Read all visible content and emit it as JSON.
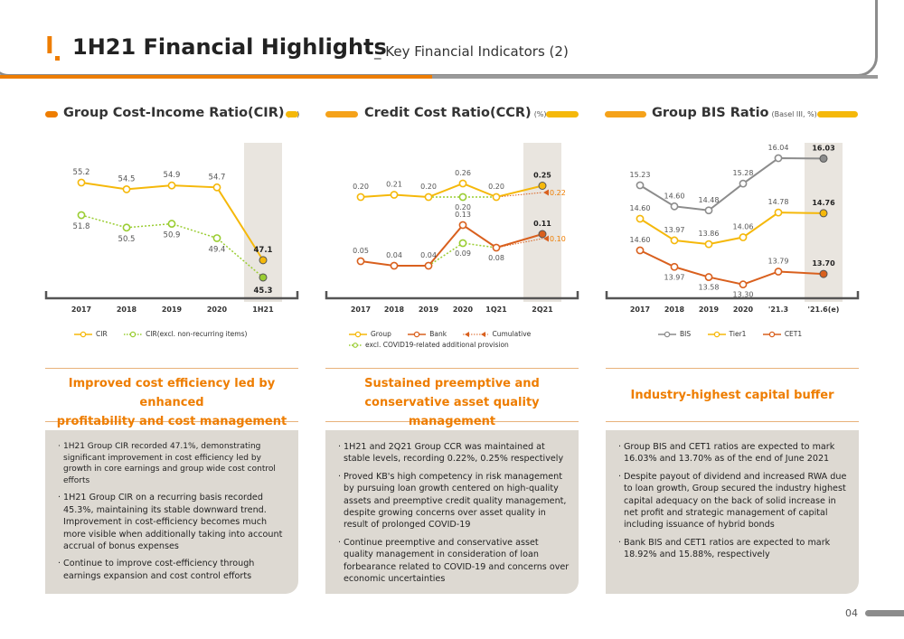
{
  "header": {
    "roman": "I",
    "title": "1H21 Financial Highlights",
    "subtitle": "_ Key Financial Indicators (2)"
  },
  "colors": {
    "orange": "#ee7d00",
    "yellow": "#f5b80a",
    "green": "#9acd32",
    "gray": "#8c8c8c",
    "dark_orange": "#d9601e",
    "panel_bg": "#ddd9d2",
    "highlight_bg": "#e9e5df"
  },
  "panels": [
    {
      "title": "Group Cost-Income Ratio(CIR)",
      "unit": "(%)",
      "headline_1": "Improved cost efficiency led by enhanced",
      "headline_2": "profitability and cost management",
      "bullets": [
        "1H21 Group CIR recorded 47.1%, demonstrating significant improvement in cost efficiency led by growth in core earnings and group wide cost control efforts",
        "1H21 Group CIR on a recurring basis recorded 45.3%, maintaining its stable downward trend. Improvement in cost-efficiency becomes much more visible when additionally taking into account accrual of bonus expenses",
        "Continue to improve cost-efficiency through earnings expansion and cost control efforts"
      ]
    },
    {
      "title": "Credit Cost Ratio(CCR)",
      "unit": "(%)",
      "headline_1": "Sustained preemptive and",
      "headline_2": "conservative asset quality management",
      "bullets": [
        "1H21 and 2Q21 Group CCR was maintained at stable levels, recording 0.22%, 0.25% respectively",
        "Proved KB's high competency in risk management by pursuing loan growth centered on high-quality assets and preemptive credit quality management, despite growing concerns over asset quality in result of prolonged COVID-19",
        "Continue preemptive and conservative asset quality management in consideration of loan forbearance related to COVID-19 and concerns over economic uncertainties"
      ]
    },
    {
      "title": "Group BIS Ratio",
      "unit": "(Basel III, %)",
      "headline_1": "Industry-highest capital buffer",
      "headline_2": "",
      "bullets": [
        "Group BIS and CET1 ratios are expected to mark 16.03% and 13.70% as of the end of June 2021",
        "Despite payout of dividend and increased RWA due to loan growth, Group secured the industry highest capital adequacy on the back of solid increase in net profit and strategic management of capital including issuance of hybrid bonds",
        "Bank BIS and CET1 ratios are expected to mark 18.92% and 15.88%, respectively"
      ]
    }
  ],
  "chart_data": [
    {
      "type": "line",
      "title": "Group Cost-Income Ratio(CIR)",
      "categories": [
        "2017",
        "2018",
        "2019",
        "2020",
        "1H21"
      ],
      "series": [
        {
          "name": "CIR",
          "values": [
            55.2,
            54.5,
            54.9,
            54.7,
            47.1
          ],
          "labels": [
            "55.2",
            "54.5",
            "54.9",
            "54.7",
            "47.1"
          ]
        },
        {
          "name": "CIR(excl. non-recurring items)",
          "values": [
            51.8,
            50.5,
            50.9,
            49.4,
            45.3
          ],
          "labels": [
            "51.8",
            "50.5",
            "50.9",
            "49.4",
            "45.3"
          ]
        }
      ]
    },
    {
      "type": "line",
      "title": "Credit Cost Ratio(CCR)",
      "categories": [
        "2017",
        "2018",
        "2019",
        "2020",
        "1Q21",
        "2Q21"
      ],
      "series": [
        {
          "name": "Group",
          "values": [
            0.2,
            0.21,
            0.2,
            0.26,
            0.2,
            0.25
          ],
          "labels": [
            "0.20",
            "0.21",
            "0.20",
            "0.26",
            "0.20",
            "0.25"
          ]
        },
        {
          "name": "excl. COVID19-related additional provision",
          "values": [
            null,
            null,
            null,
            0.2,
            null,
            null
          ],
          "labels": [
            "",
            "",
            "",
            "0.20",
            "",
            ""
          ]
        },
        {
          "name": "Cumulative",
          "values": [
            null,
            null,
            null,
            null,
            0.2,
            0.22
          ],
          "labels": [
            "",
            "",
            "",
            "",
            "",
            "0.22"
          ]
        },
        {
          "name": "Bank",
          "values": [
            0.05,
            0.04,
            0.04,
            0.13,
            0.08,
            0.11
          ],
          "labels": [
            "0.05",
            "0.04",
            "0.04",
            "0.13",
            "0.08",
            "0.11"
          ]
        },
        {
          "name": "excl. COVID19-related additional provision (Bank)",
          "values": [
            null,
            null,
            null,
            0.09,
            null,
            null
          ],
          "labels": [
            "",
            "",
            "",
            "0.09",
            "",
            ""
          ]
        },
        {
          "name": "Cumulative (Bank)",
          "values": [
            null,
            null,
            null,
            null,
            0.08,
            0.1
          ],
          "labels": [
            "",
            "",
            "",
            "",
            "",
            "0.10"
          ]
        }
      ],
      "legend": [
        "Group",
        "Bank",
        "Cumulative",
        "excl. COVID19-related additional provision"
      ]
    },
    {
      "type": "line",
      "title": "Group BIS Ratio",
      "categories": [
        "2017",
        "2018",
        "2019",
        "2020",
        "'21.3",
        "'21.6(e)"
      ],
      "series": [
        {
          "name": "BIS",
          "values": [
            15.23,
            14.6,
            14.48,
            15.28,
            16.04,
            16.03
          ],
          "labels": [
            "15.23",
            "14.60",
            "14.48",
            "15.28",
            "16.04",
            "16.03"
          ]
        },
        {
          "name": "Tier1",
          "values": [
            14.6,
            13.97,
            13.86,
            14.06,
            14.78,
            14.76
          ],
          "labels": [
            "14.60",
            "13.97",
            "13.86",
            "14.06",
            "14.78",
            "14.76"
          ]
        },
        {
          "name": "CET1",
          "values": [
            14.6,
            13.97,
            13.58,
            13.3,
            13.79,
            13.7
          ],
          "labels": [
            "14.60",
            "13.97",
            "13.58",
            "13.30",
            "13.79",
            "13.70"
          ]
        }
      ]
    }
  ],
  "page_number": "04"
}
